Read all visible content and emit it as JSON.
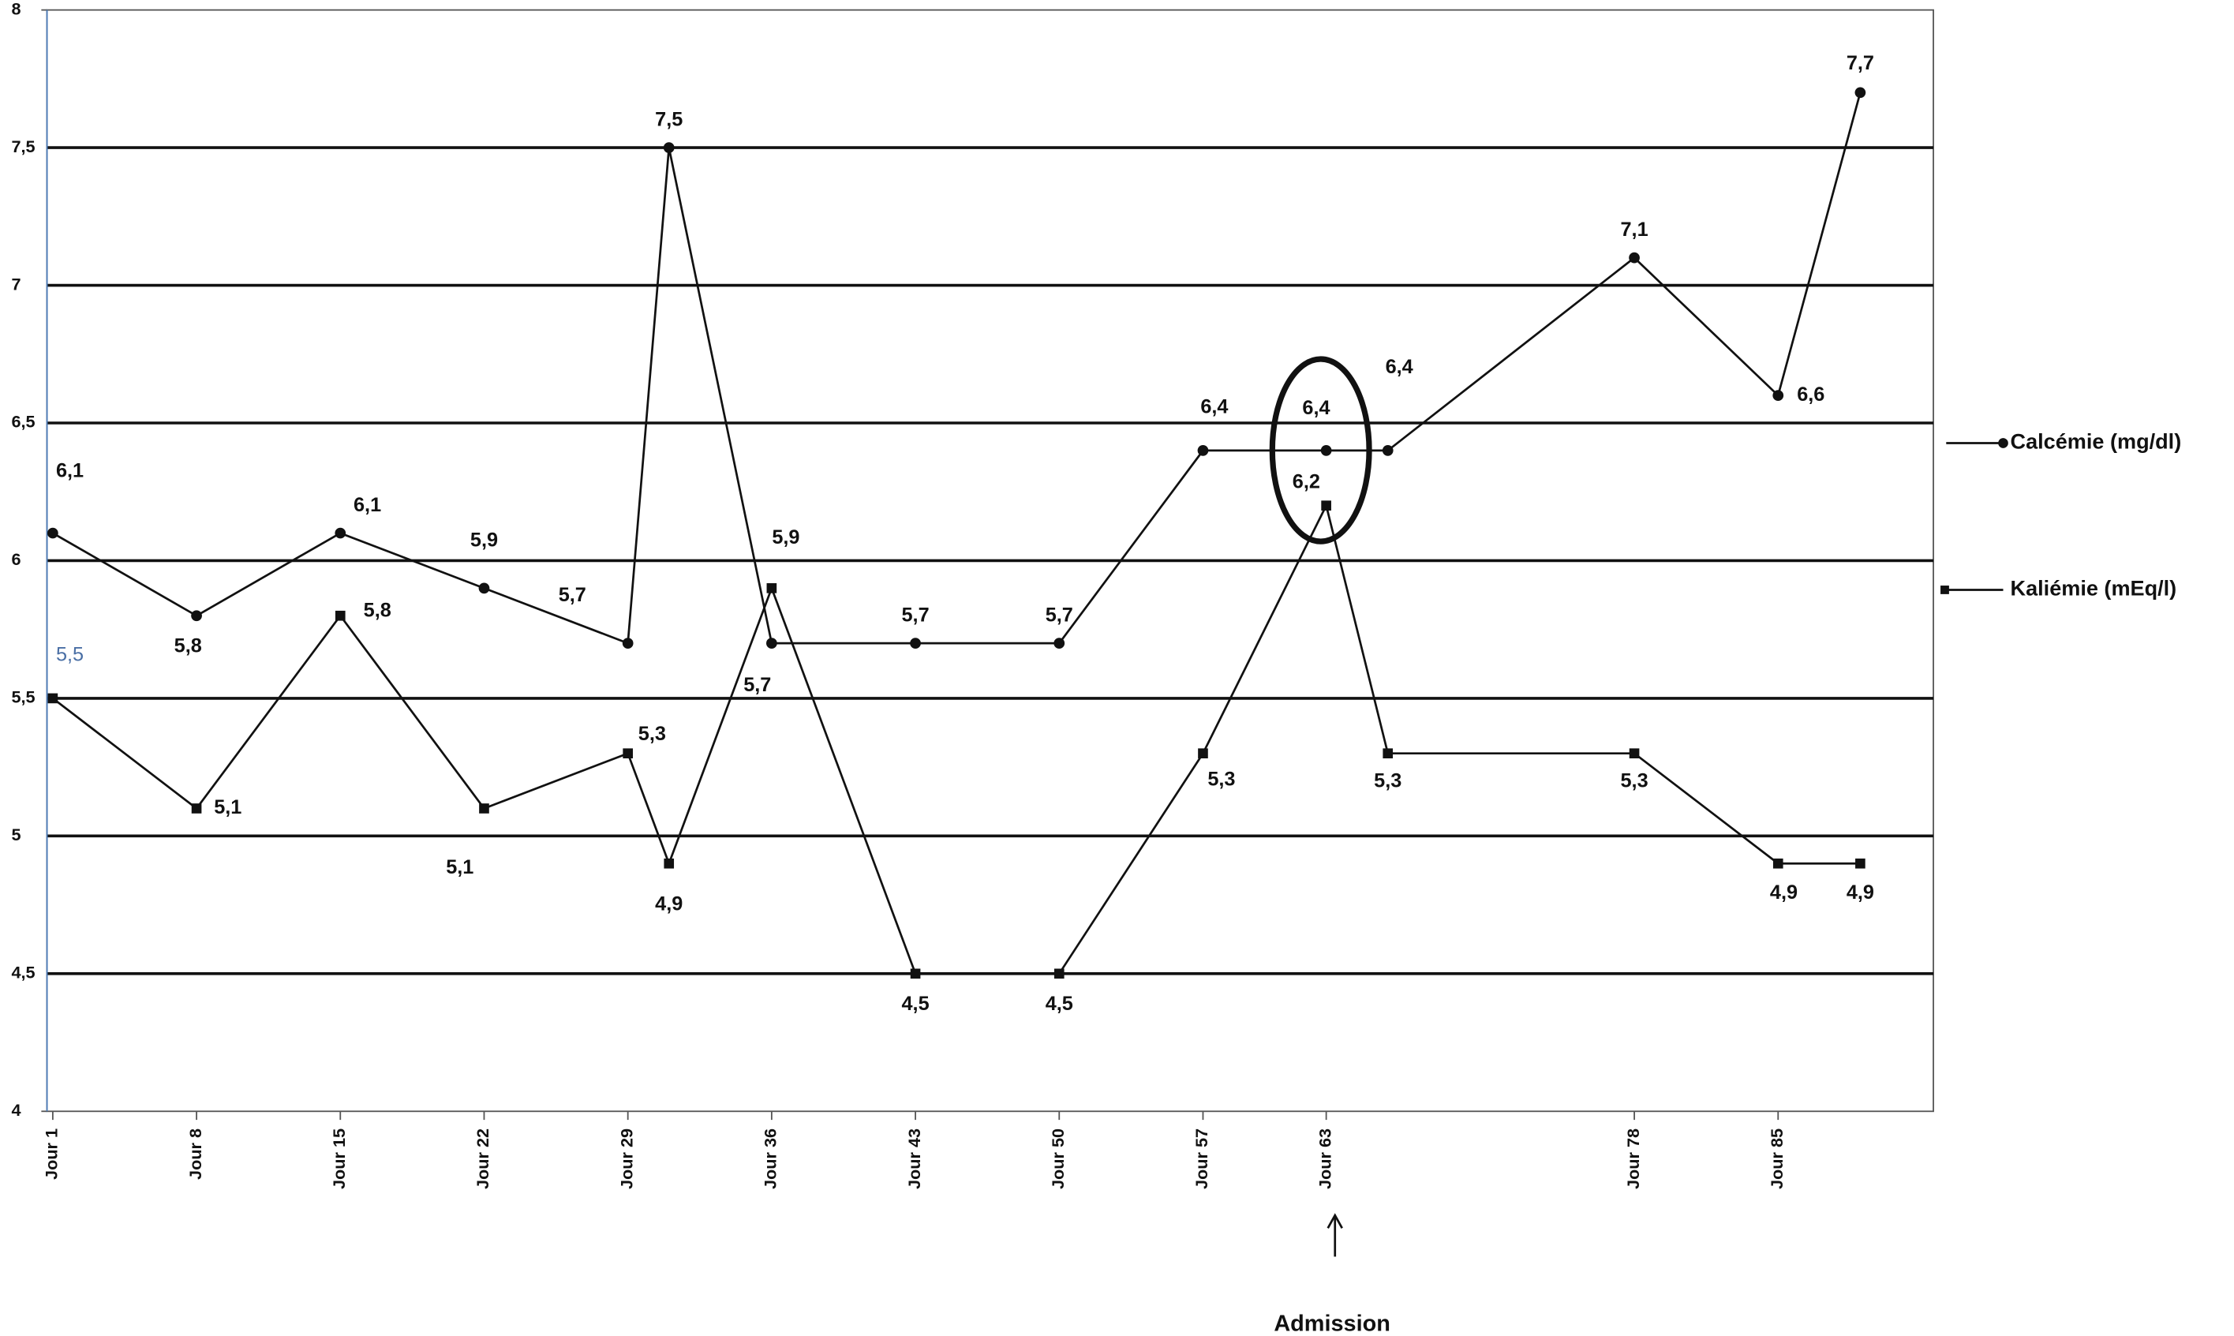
{
  "chart_data": {
    "type": "line",
    "x": [
      1,
      8,
      15,
      22,
      29,
      31,
      36,
      43,
      50,
      57,
      63,
      66,
      78,
      85,
      89
    ],
    "xlim": [
      0.72,
      92.56
    ],
    "xticks": [
      {
        "value": 1,
        "label": "Jour 1"
      },
      {
        "value": 8,
        "label": "Jour 8"
      },
      {
        "value": 15,
        "label": "Jour 15"
      },
      {
        "value": 22,
        "label": "Jour 22"
      },
      {
        "value": 29,
        "label": "Jour 29"
      },
      {
        "value": 36,
        "label": "Jour 36"
      },
      {
        "value": 43,
        "label": "Jour 43"
      },
      {
        "value": 50,
        "label": "Jour 50"
      },
      {
        "value": 57,
        "label": "Jour 57"
      },
      {
        "value": 63,
        "label": "Jour 63"
      },
      {
        "value": 78,
        "label": "Jour 78"
      },
      {
        "value": 85,
        "label": "Jour 85"
      }
    ],
    "ylim": [
      4,
      8
    ],
    "yticks": [
      4,
      {
        "value": 4.5,
        "label": "4,5"
      },
      5,
      {
        "value": 5.5,
        "label": "5,5"
      },
      6,
      {
        "value": 6.5,
        "label": "6,5"
      },
      7,
      {
        "value": 7.5,
        "label": "7,5"
      },
      8
    ],
    "grid": true,
    "legend": "right",
    "annotation": "Admission",
    "series": [
      {
        "name": "Calcémie (mg/dl)",
        "color": "#111111",
        "marker": "circle",
        "values": [
          6.1,
          5.8,
          6.1,
          5.9,
          5.7,
          7.5,
          5.7,
          5.7,
          5.7,
          6.4,
          6.4,
          6.4,
          7.1,
          6.6,
          7.7
        ],
        "value_labels": [
          "6,1",
          "5,8",
          "6,1",
          "5,9",
          "5,7",
          "7,5",
          "5,7",
          "5,7",
          "5,7",
          "6,4",
          "6,4",
          "6,4",
          "7,1",
          "6,6",
          "7,7"
        ]
      },
      {
        "name": "Kaliémie (mEq/l)",
        "color": "#111111",
        "marker": "square",
        "values": [
          5.5,
          5.1,
          5.8,
          5.1,
          5.3,
          4.9,
          5.9,
          4.5,
          4.5,
          5.3,
          6.2,
          5.3,
          5.3,
          4.9,
          4.9
        ],
        "value_labels": [
          "5,5",
          "5,1",
          "5,8",
          "5,1",
          "5,3",
          "4,9",
          "5,9",
          "4,5",
          "4,5",
          "5,3",
          "6,2",
          "5,3",
          "5,3",
          "4,9",
          "4,9"
        ]
      }
    ]
  }
}
